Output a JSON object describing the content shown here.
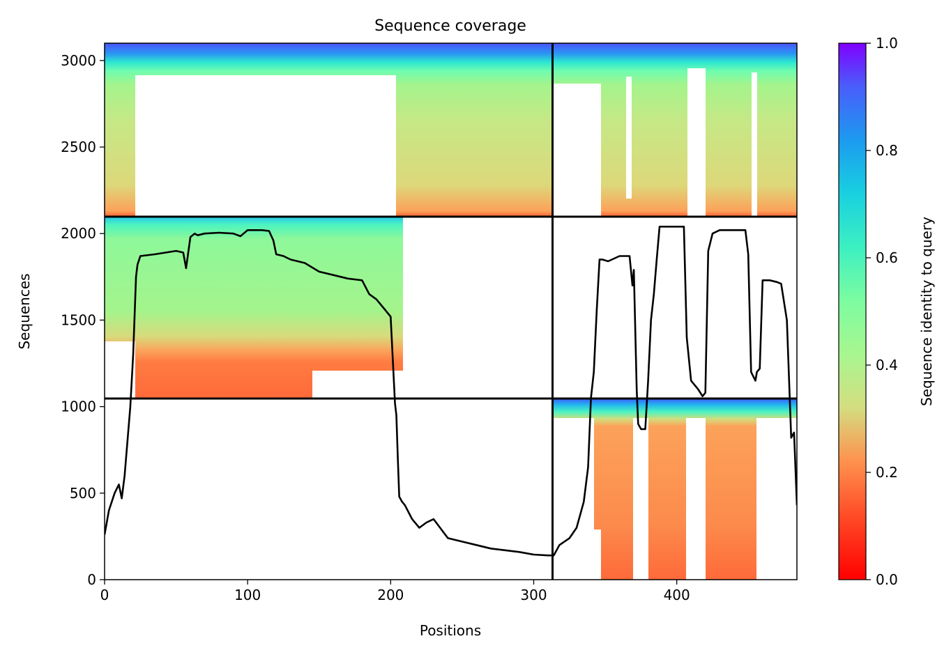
{
  "chart_data": {
    "type": "heatmap",
    "title": "Sequence coverage",
    "xlabel": "Positions",
    "ylabel": "Sequences",
    "xlim": [
      0,
      484
    ],
    "ylim": [
      0,
      3100
    ],
    "xticks": [
      0,
      100,
      200,
      300,
      400
    ],
    "yticks": [
      0,
      500,
      1000,
      1500,
      2000,
      2500,
      3000
    ],
    "colorbar": {
      "label": "Sequence identity to query",
      "range": [
        0.0,
        1.0
      ],
      "ticks": [
        "0.0",
        "0.2",
        "0.4",
        "0.6",
        "0.8",
        "1.0"
      ],
      "colormap": "rainbow"
    },
    "block_boundaries": {
      "x": [
        314
      ],
      "y": [
        1045,
        2090
      ]
    },
    "blocks": [
      {
        "name": "upper-left",
        "x": [
          0,
          314
        ],
        "y": [
          2090,
          3100
        ],
        "identity_range": [
          0.2,
          0.9
        ]
      },
      {
        "name": "upper-right",
        "x": [
          314,
          484
        ],
        "y": [
          2090,
          3100
        ],
        "identity_range": [
          0.2,
          0.9
        ]
      },
      {
        "name": "middle-left",
        "x": [
          0,
          314
        ],
        "y": [
          1045,
          2090
        ],
        "identity_range": [
          0.15,
          0.6
        ]
      },
      {
        "name": "lower-right",
        "x": [
          314,
          484
        ],
        "y": [
          0,
          1045
        ],
        "identity_range": [
          0.15,
          0.8
        ]
      }
    ],
    "series": [
      {
        "type": "line",
        "color": "#000000",
        "x": [
          0,
          3,
          7,
          10,
          12,
          14,
          16,
          18,
          20,
          22,
          23,
          25,
          35,
          50,
          55,
          57,
          60,
          63,
          65,
          70,
          80,
          90,
          95,
          100,
          110,
          115,
          118,
          120,
          125,
          130,
          140,
          150,
          160,
          170,
          180,
          185,
          190,
          195,
          200,
          203,
          204,
          205,
          206,
          208,
          210,
          215,
          220,
          225,
          230,
          240,
          250,
          260,
          270,
          280,
          290,
          300,
          310,
          314,
          318,
          325,
          330,
          335,
          338,
          340,
          342,
          344,
          346,
          348,
          352,
          360,
          367,
          369,
          370,
          372,
          373,
          375,
          378,
          380,
          382,
          384,
          386,
          388,
          390,
          395,
          405,
          407,
          410,
          415,
          418,
          420,
          422,
          425,
          430,
          440,
          448,
          450,
          452,
          455,
          456,
          458,
          460,
          465,
          470,
          473,
          477,
          480,
          482,
          484
        ],
        "y": [
          260,
          400,
          500,
          550,
          470,
          600,
          800,
          1000,
          1300,
          1750,
          1820,
          1870,
          1880,
          1900,
          1890,
          1800,
          1980,
          2000,
          1990,
          2000,
          2005,
          2000,
          1985,
          2020,
          2020,
          2015,
          1960,
          1880,
          1870,
          1850,
          1830,
          1780,
          1760,
          1740,
          1730,
          1650,
          1620,
          1570,
          1520,
          1020,
          950,
          700,
          480,
          450,
          430,
          350,
          300,
          330,
          350,
          240,
          220,
          200,
          180,
          170,
          160,
          145,
          140,
          140,
          200,
          240,
          300,
          450,
          650,
          1050,
          1200,
          1550,
          1850,
          1850,
          1840,
          1870,
          1870,
          1700,
          1790,
          1100,
          900,
          870,
          870,
          1150,
          1500,
          1650,
          1850,
          2040,
          2040,
          2040,
          2040,
          1400,
          1150,
          1100,
          1060,
          1080,
          1900,
          2000,
          2020,
          2020,
          2020,
          1880,
          1200,
          1150,
          1200,
          1220,
          1730,
          1730,
          1720,
          1710,
          1500,
          820,
          850,
          430
        ]
      }
    ]
  }
}
